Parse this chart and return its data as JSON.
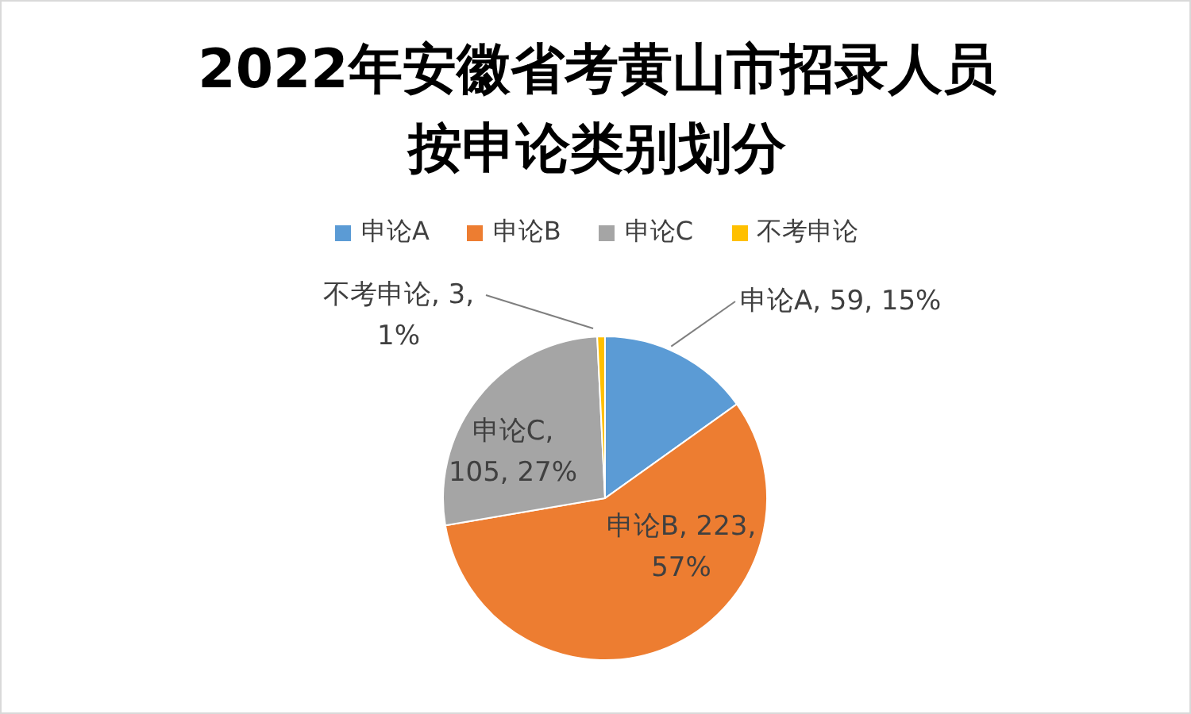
{
  "chart_data": {
    "type": "pie",
    "title": "2022年安徽省考黄山市招录人员按申论类别划分",
    "categories": [
      "申论A",
      "申论B",
      "申论C",
      "不考申论"
    ],
    "values": [
      59,
      223,
      105,
      3
    ],
    "colors": [
      "#5b9bd5",
      "#ed7d31",
      "#a5a5a5",
      "#ffc000"
    ],
    "value_labels": [
      "申论A, 59, 15%",
      "申论B, 223, 57%",
      "申论C, 105, 27%",
      "不考申论, 3, 1%"
    ],
    "legend": "top"
  }
}
